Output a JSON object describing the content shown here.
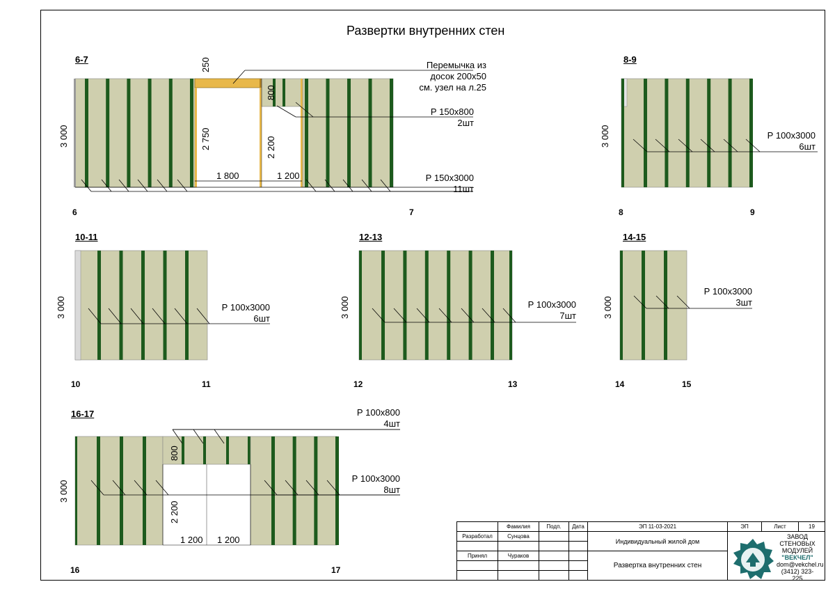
{
  "title": "Развертки внутренних стен",
  "walls": [
    {
      "id": "w67",
      "label": "6-7",
      "left_axis": "6",
      "right_axis": "7",
      "height_dim": "3 000",
      "annotations": [
        {
          "lines": [
            "Перемычка из",
            "досок 200х50",
            "см. узел на л.25"
          ]
        },
        {
          "lines": [
            "Р 150х800",
            "2шт"
          ]
        },
        {
          "lines": [
            "Р 150х3000",
            "11шт"
          ]
        }
      ],
      "dims": [
        "250",
        "2 750",
        "800",
        "2 200",
        "1 800",
        "1 200"
      ]
    },
    {
      "id": "w89",
      "label": "8-9",
      "left_axis": "8",
      "right_axis": "9",
      "height_dim": "3 000",
      "annotations": [
        {
          "lines": [
            "Р 100х3000",
            "6шт"
          ]
        }
      ]
    },
    {
      "id": "w1011",
      "label": "10-11",
      "left_axis": "10",
      "right_axis": "11",
      "height_dim": "3 000",
      "annotations": [
        {
          "lines": [
            "Р 100х3000",
            "6шт"
          ]
        }
      ]
    },
    {
      "id": "w1213",
      "label": "12-13",
      "left_axis": "12",
      "right_axis": "13",
      "height_dim": "3 000",
      "annotations": [
        {
          "lines": [
            "Р 100х3000",
            "7шт"
          ]
        }
      ]
    },
    {
      "id": "w1415",
      "label": "14-15",
      "left_axis": "14",
      "right_axis": "15",
      "height_dim": "3 000",
      "annotations": [
        {
          "lines": [
            "Р 100х3000",
            "3шт"
          ]
        }
      ]
    },
    {
      "id": "w1617",
      "label": "16-17",
      "left_axis": "16",
      "right_axis": "17",
      "height_dim": "3 000",
      "annotations": [
        {
          "lines": [
            "Р 100х800",
            "4шт"
          ]
        },
        {
          "lines": [
            "Р 100х3000",
            "8шт"
          ]
        }
      ],
      "dims": [
        "800",
        "2 200",
        "1 200",
        "1 200"
      ]
    }
  ],
  "stamp": {
    "col_family": "Фамилия",
    "col_sign": "Подп.",
    "col_date": "Дата",
    "doc_code": "ЭП 11-03-2021",
    "stage": "ЭП",
    "sheet_label": "Лист",
    "sheet_no": "19",
    "role1": "Разработал",
    "name1": "Сунцова",
    "role2": "Принял",
    "name2": "Чураков",
    "project": "Индивидуальный жилой дом",
    "sheet_title": "Развертка внутренних стен",
    "company_lines": [
      "ЗАВОД",
      "СТЕНОВЫХ",
      "МОДУЛЕЙ",
      "\"ВЕКЧЕЛ\""
    ],
    "email": "dom@vekchel.ru",
    "phone": "(3412) 323-225"
  },
  "colors": {
    "panel": "#cfcfae",
    "stud": "#1d5a1d",
    "lintel": "#e8b84a",
    "frame_edge": "#9a9a9a"
  }
}
